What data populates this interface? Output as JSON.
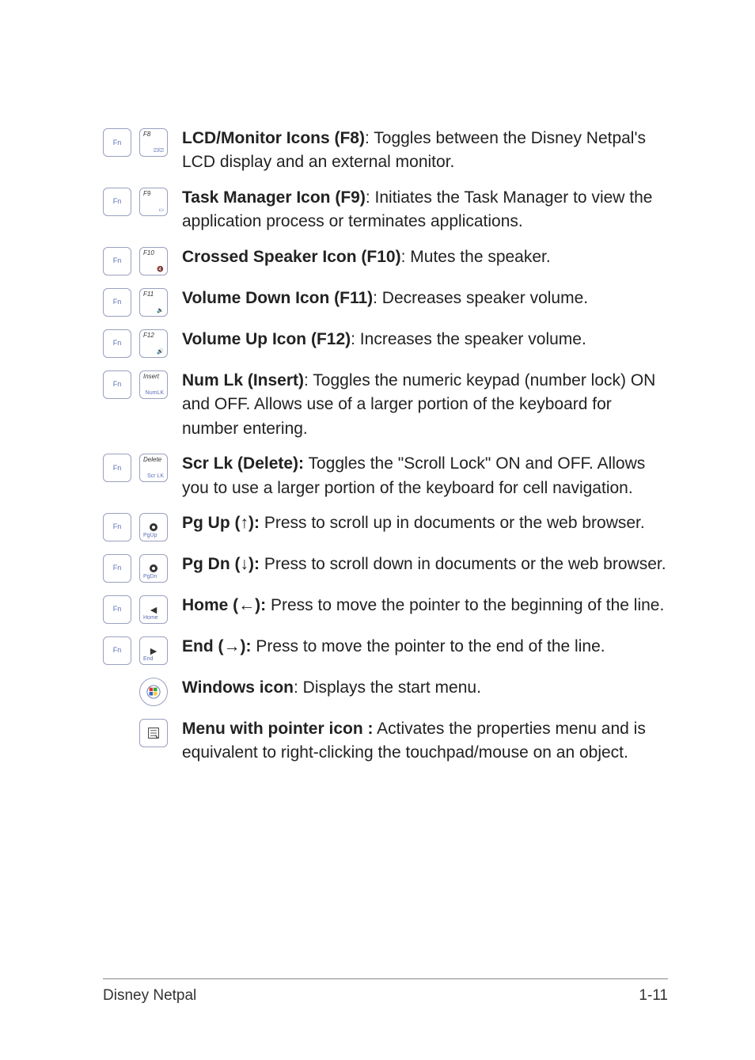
{
  "rows": [
    {
      "keys": [
        "fn",
        "f8"
      ],
      "bold": "LCD/Monitor Icons (F8)",
      "rest": ": Toggles between the Disney Netpal's LCD display and an external monitor."
    },
    {
      "keys": [
        "fn",
        "f9"
      ],
      "bold": "Task Manager Icon (F9)",
      "rest": ": Initiates the Task Manager to view the application process or terminates applications."
    },
    {
      "keys": [
        "fn",
        "f10"
      ],
      "bold": "Crossed Speaker Icon (F10)",
      "rest": ": Mutes the speaker."
    },
    {
      "keys": [
        "fn",
        "f11"
      ],
      "bold": "Volume Down Icon (F11)",
      "rest": ": Decreases speaker volume."
    },
    {
      "keys": [
        "fn",
        "f12"
      ],
      "bold": "Volume Up Icon (F12)",
      "rest": ": Increases the speaker volume."
    },
    {
      "keys": [
        "fn",
        "insert"
      ],
      "bold": "Num Lk (Insert)",
      "rest": ": Toggles the numeric keypad (number lock) ON and OFF. Allows use of a larger portion of the keyboard for number entering."
    },
    {
      "keys": [
        "fn",
        "delete"
      ],
      "bold": "Scr Lk (Delete):",
      "rest": " Toggles the \"Scroll Lock\" ON and OFF. Allows you to use a larger portion of the keyboard for cell navigation."
    },
    {
      "keys": [
        "fn",
        "up"
      ],
      "bold": "Pg Up (↑):",
      "rest": " Press to scroll up in documents or the web browser."
    },
    {
      "keys": [
        "fn",
        "down"
      ],
      "bold": "Pg Dn (↓):",
      "rest": " Press to scroll down in documents or the web browser."
    },
    {
      "keys": [
        "fn",
        "left"
      ],
      "bold": "Home (←):",
      "rest": " Press to move the pointer to the beginning of the line."
    },
    {
      "keys": [
        "fn",
        "right"
      ],
      "bold": "End (→):",
      "rest": " Press to move the pointer to the end of the line."
    },
    {
      "keys": [
        "win"
      ],
      "bold": "Windows icon",
      "rest": ": Displays the start menu."
    },
    {
      "keys": [
        "menu"
      ],
      "bold": "Menu with pointer icon :",
      "rest": " Activates the properties menu and is equivalent to right-clicking the touchpad/mouse on an object."
    }
  ],
  "keylabels": {
    "fn": "Fn",
    "f8": {
      "top": "F8",
      "bot": "⎚/⎚"
    },
    "f9": {
      "top": "F9",
      "bot": "▭"
    },
    "f10": {
      "top": "F10",
      "bot": "🔇"
    },
    "f11": {
      "top": "F11",
      "bot": "🔉"
    },
    "f12": {
      "top": "F12",
      "bot": "🔊"
    },
    "insert": {
      "top": "Insert",
      "bot": "NumLK"
    },
    "delete": {
      "top": "Delete",
      "bot": "Scr LK"
    },
    "up": {
      "sub": "PgUp"
    },
    "down": {
      "sub": "PgDn"
    },
    "left": {
      "sub": "Home"
    },
    "right": {
      "sub": "End"
    }
  },
  "footer": {
    "left": "Disney Netpal",
    "right": "1-11"
  }
}
